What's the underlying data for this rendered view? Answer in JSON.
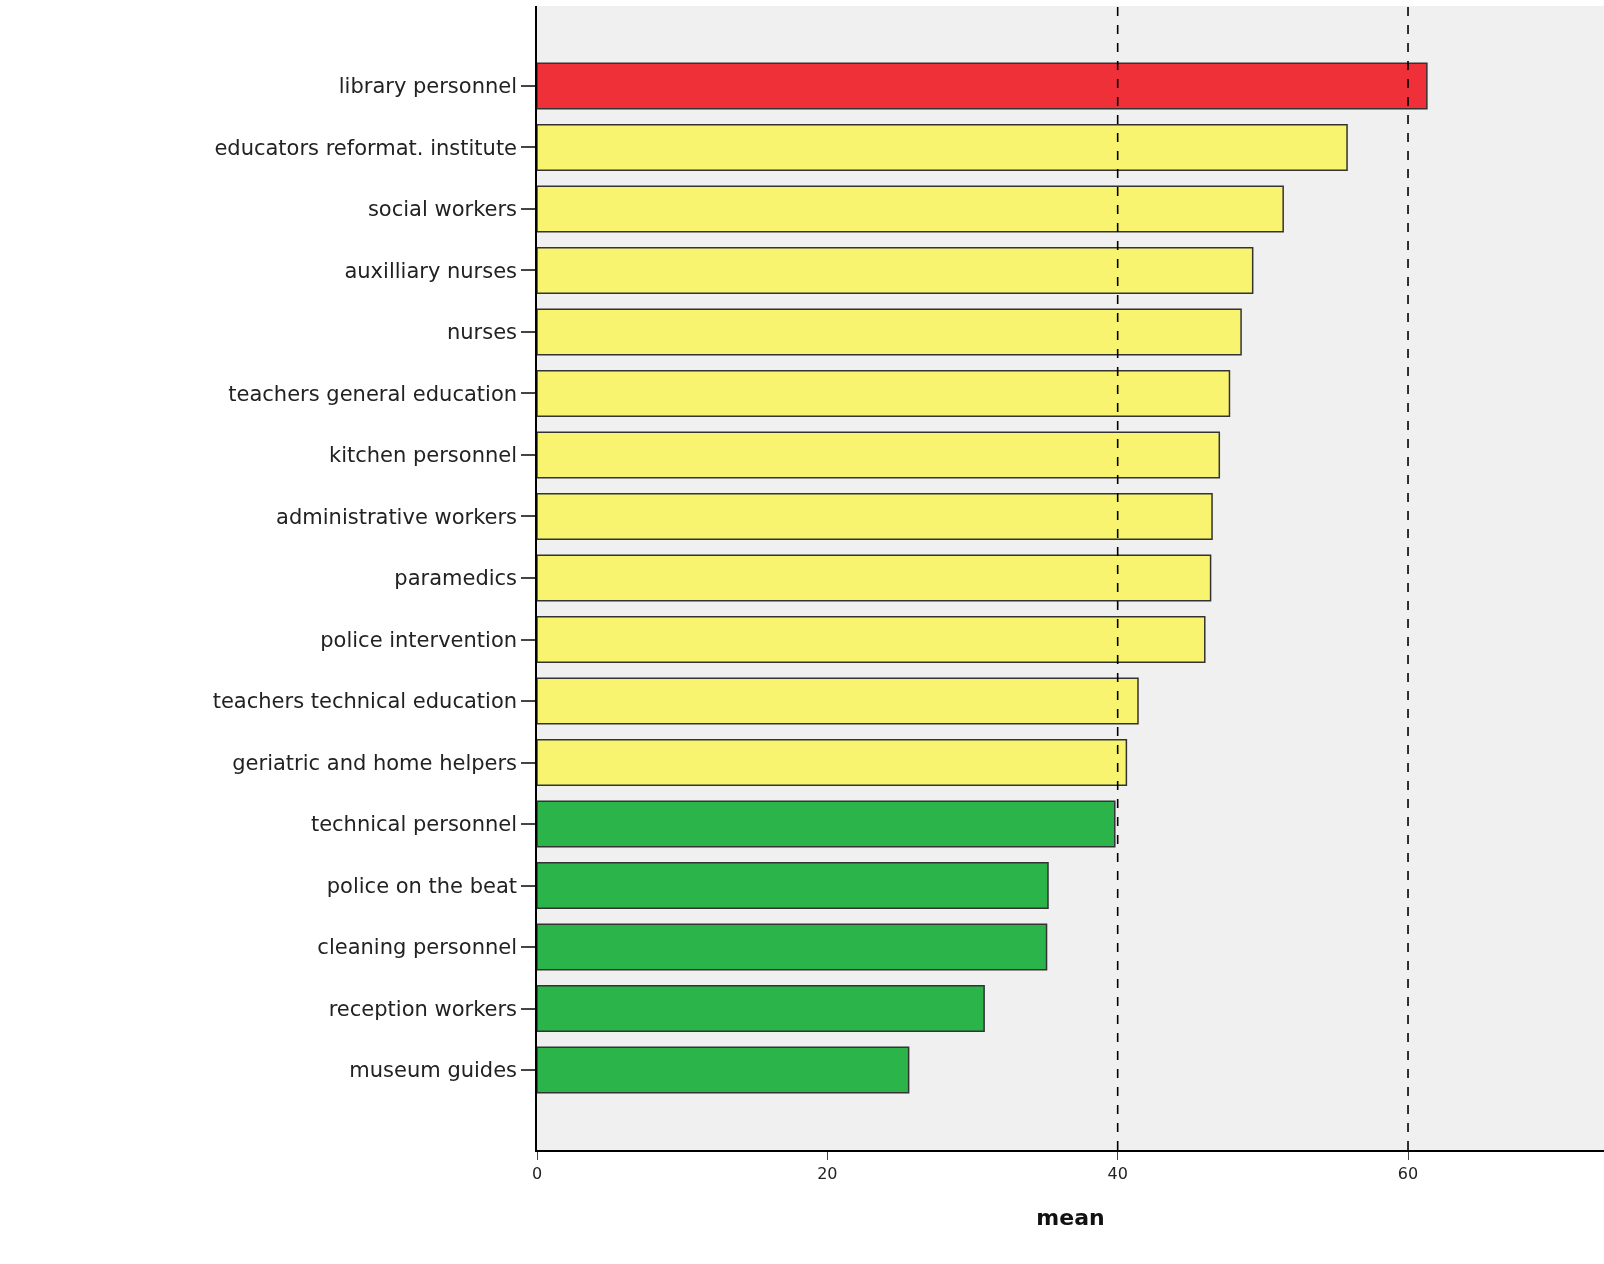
{
  "chart_data": {
    "type": "bar",
    "orientation": "horizontal",
    "xlabel": "mean",
    "categories": [
      "library personnel",
      "educators reformat. institute",
      "social workers",
      "auxilliary nurses",
      "nurses",
      "teachers general education",
      "kitchen personnel",
      "administrative workers",
      "paramedics",
      "police intervention",
      "teachers technical education",
      "geriatric and home helpers",
      "technical personnel",
      "police on the beat",
      "cleaning personnel",
      "reception workers",
      "museum guides"
    ],
    "values": [
      61.3,
      55.8,
      51.4,
      49.3,
      48.5,
      47.7,
      47.0,
      46.5,
      46.4,
      46.0,
      41.4,
      40.6,
      39.8,
      35.2,
      35.1,
      30.8,
      25.6
    ],
    "colors": [
      "#ef3038",
      "#f9f470",
      "#f9f470",
      "#f9f470",
      "#f9f470",
      "#f9f470",
      "#f9f470",
      "#f9f470",
      "#f9f470",
      "#f9f470",
      "#f9f470",
      "#f9f470",
      "#2bb44a",
      "#2bb44a",
      "#2bb44a",
      "#2bb44a",
      "#2bb44a"
    ],
    "xlim": [
      0,
      73.5
    ],
    "xticks": [
      0,
      20,
      40,
      60
    ],
    "grid": false,
    "ref_lines": [
      {
        "axis": "x",
        "value": 40,
        "color": "#000000",
        "line_style": "dashed"
      },
      {
        "axis": "x",
        "value": 60,
        "color": "#000000",
        "line_style": "dashed"
      }
    ]
  }
}
